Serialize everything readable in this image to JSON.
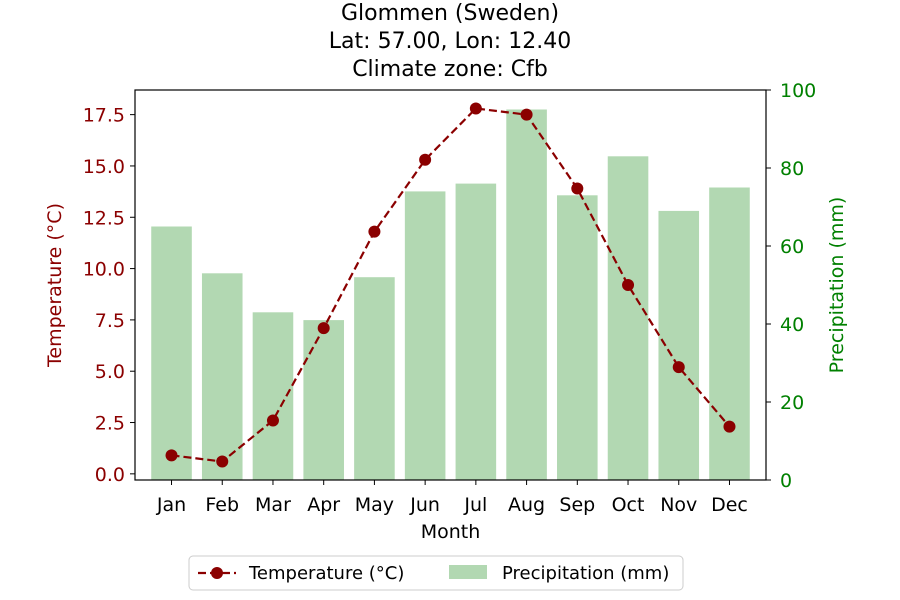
{
  "chart_data": {
    "type": "bar+line",
    "title_lines": [
      "Glommen (Sweden)",
      "Lat: 57.00, Lon: 12.40",
      "Climate zone: Cfb"
    ],
    "categories": [
      "Jan",
      "Feb",
      "Mar",
      "Apr",
      "May",
      "Jun",
      "Jul",
      "Aug",
      "Sep",
      "Oct",
      "Nov",
      "Dec"
    ],
    "xlabel": "Month",
    "series": [
      {
        "name": "Temperature (°C)",
        "type": "line",
        "axis": "left",
        "values": [
          0.9,
          0.6,
          2.6,
          7.1,
          11.8,
          15.3,
          17.8,
          17.5,
          13.9,
          9.2,
          5.2,
          2.3
        ],
        "color": "#8b0000",
        "line_style": "dashed",
        "marker": "circle"
      },
      {
        "name": "Precipitation (mm)",
        "type": "bar",
        "axis": "right",
        "values": [
          65,
          53,
          43,
          41,
          52,
          74,
          76,
          95,
          73,
          83,
          69,
          75
        ],
        "color": "#b2d8b2"
      }
    ],
    "ylabel_left": "Temperature (°C)",
    "ylim_left": [
      -0.3,
      18.7
    ],
    "yticks_left": [
      "0.0",
      "2.5",
      "5.0",
      "7.5",
      "10.0",
      "12.5",
      "15.0",
      "17.5"
    ],
    "ylabel_right": "Precipitation (mm)",
    "ylim_right": [
      0,
      100
    ],
    "yticks_right": [
      "0",
      "20",
      "40",
      "60",
      "80",
      "100"
    ],
    "left_axis_color": "#8b0000",
    "right_axis_color": "#008000",
    "grid": false,
    "legend_position": "bottom-center"
  }
}
